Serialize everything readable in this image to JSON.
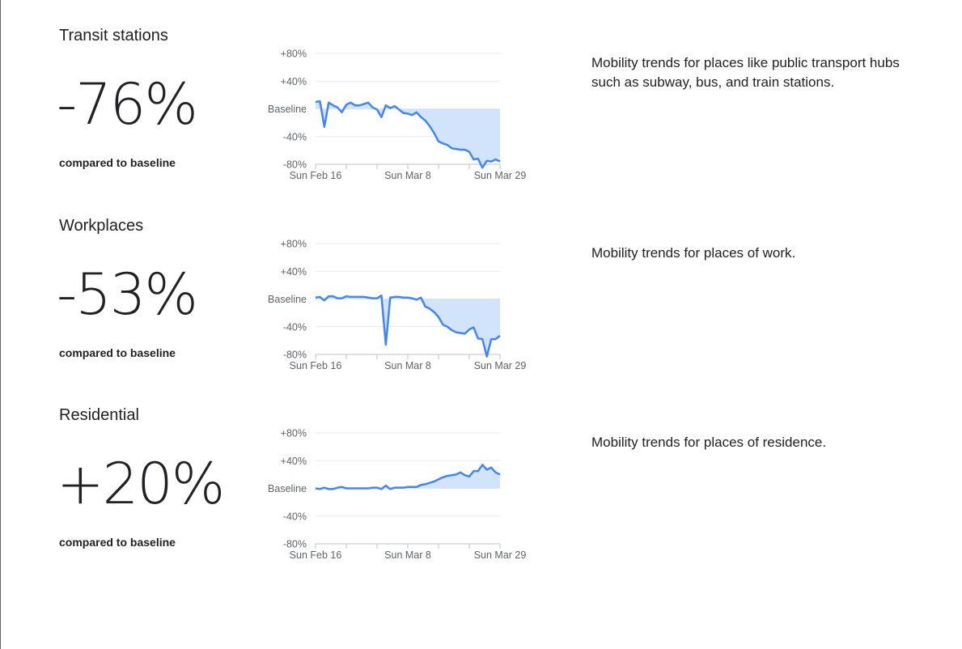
{
  "colors": {
    "line": "#4285f4",
    "fill": "#d2e3fc",
    "grid": "#e8eaed"
  },
  "sections": [
    {
      "title": "Transit stations",
      "value": "-76%",
      "compare": "compared to baseline",
      "description": "Mobility trends for places like public transport hubs such as subway, bus, and train stations."
    },
    {
      "title": "Workplaces",
      "value": "-53%",
      "compare": "compared to baseline",
      "description": "Mobility trends for places of work."
    },
    {
      "title": "Residential",
      "value": "+20%",
      "compare": "compared to baseline",
      "description": "Mobility trends for places of residence."
    }
  ],
  "chart_data": [
    {
      "type": "area",
      "series_of": "Transit stations",
      "ylim": [
        -80,
        80
      ],
      "yticks": [
        "+80%",
        "+40%",
        "Baseline",
        "-40%",
        "-80%"
      ],
      "ytick_values": [
        80,
        40,
        0,
        -40,
        -80
      ],
      "xtick_labels": [
        "Sun Feb 16",
        "Sun Mar 8",
        "Sun Mar 29"
      ],
      "x_start": "Feb 16",
      "x_end": "Mar 29",
      "grid": true,
      "values": [
        10,
        11,
        -26,
        9,
        5,
        2,
        -5,
        6,
        9,
        5,
        5,
        7,
        9,
        2,
        -1,
        -12,
        5,
        1,
        4,
        -1,
        -6,
        -7,
        -9,
        -5,
        -12,
        -17,
        -25,
        -35,
        -47,
        -50,
        -52,
        -57,
        -58,
        -59,
        -59,
        -62,
        -73,
        -72,
        -85,
        -75,
        -76,
        -73,
        -76
      ]
    },
    {
      "type": "area",
      "series_of": "Workplaces",
      "ylim": [
        -80,
        80
      ],
      "yticks": [
        "+80%",
        "+40%",
        "Baseline",
        "-40%",
        "-80%"
      ],
      "ytick_values": [
        80,
        40,
        0,
        -40,
        -80
      ],
      "xtick_labels": [
        "Sun Feb 16",
        "Sun Mar 8",
        "Sun Mar 29"
      ],
      "x_start": "Feb 16",
      "x_end": "Mar 29",
      "grid": true,
      "values": [
        2,
        3,
        -2,
        4,
        4,
        1,
        1,
        4,
        3,
        3,
        3,
        3,
        2,
        1,
        1,
        5,
        -66,
        2,
        3,
        3,
        2,
        2,
        1,
        -1,
        2,
        -11,
        -14,
        -19,
        -26,
        -37,
        -40,
        -45,
        -48,
        -49,
        -50,
        -44,
        -41,
        -57,
        -58,
        -83,
        -58,
        -58,
        -53
      ]
    },
    {
      "type": "area",
      "series_of": "Residential",
      "ylim": [
        -80,
        80
      ],
      "yticks": [
        "+80%",
        "+40%",
        "Baseline",
        "-40%",
        "-80%"
      ],
      "ytick_values": [
        80,
        40,
        0,
        -40,
        -80
      ],
      "xtick_labels": [
        "Sun Feb 16",
        "Sun Mar 8",
        "Sun Mar 29"
      ],
      "x_start": "Feb 16",
      "x_end": "Mar 29",
      "grid": true,
      "values": [
        0,
        -1,
        1,
        -1,
        -1,
        1,
        2,
        0,
        0,
        0,
        0,
        0,
        0,
        1,
        1,
        -1,
        4,
        -1,
        1,
        1,
        1,
        2,
        2,
        2,
        5,
        6,
        8,
        10,
        13,
        16,
        18,
        19,
        20,
        23,
        19,
        17,
        25,
        25,
        34,
        27,
        30,
        23,
        20
      ]
    }
  ]
}
